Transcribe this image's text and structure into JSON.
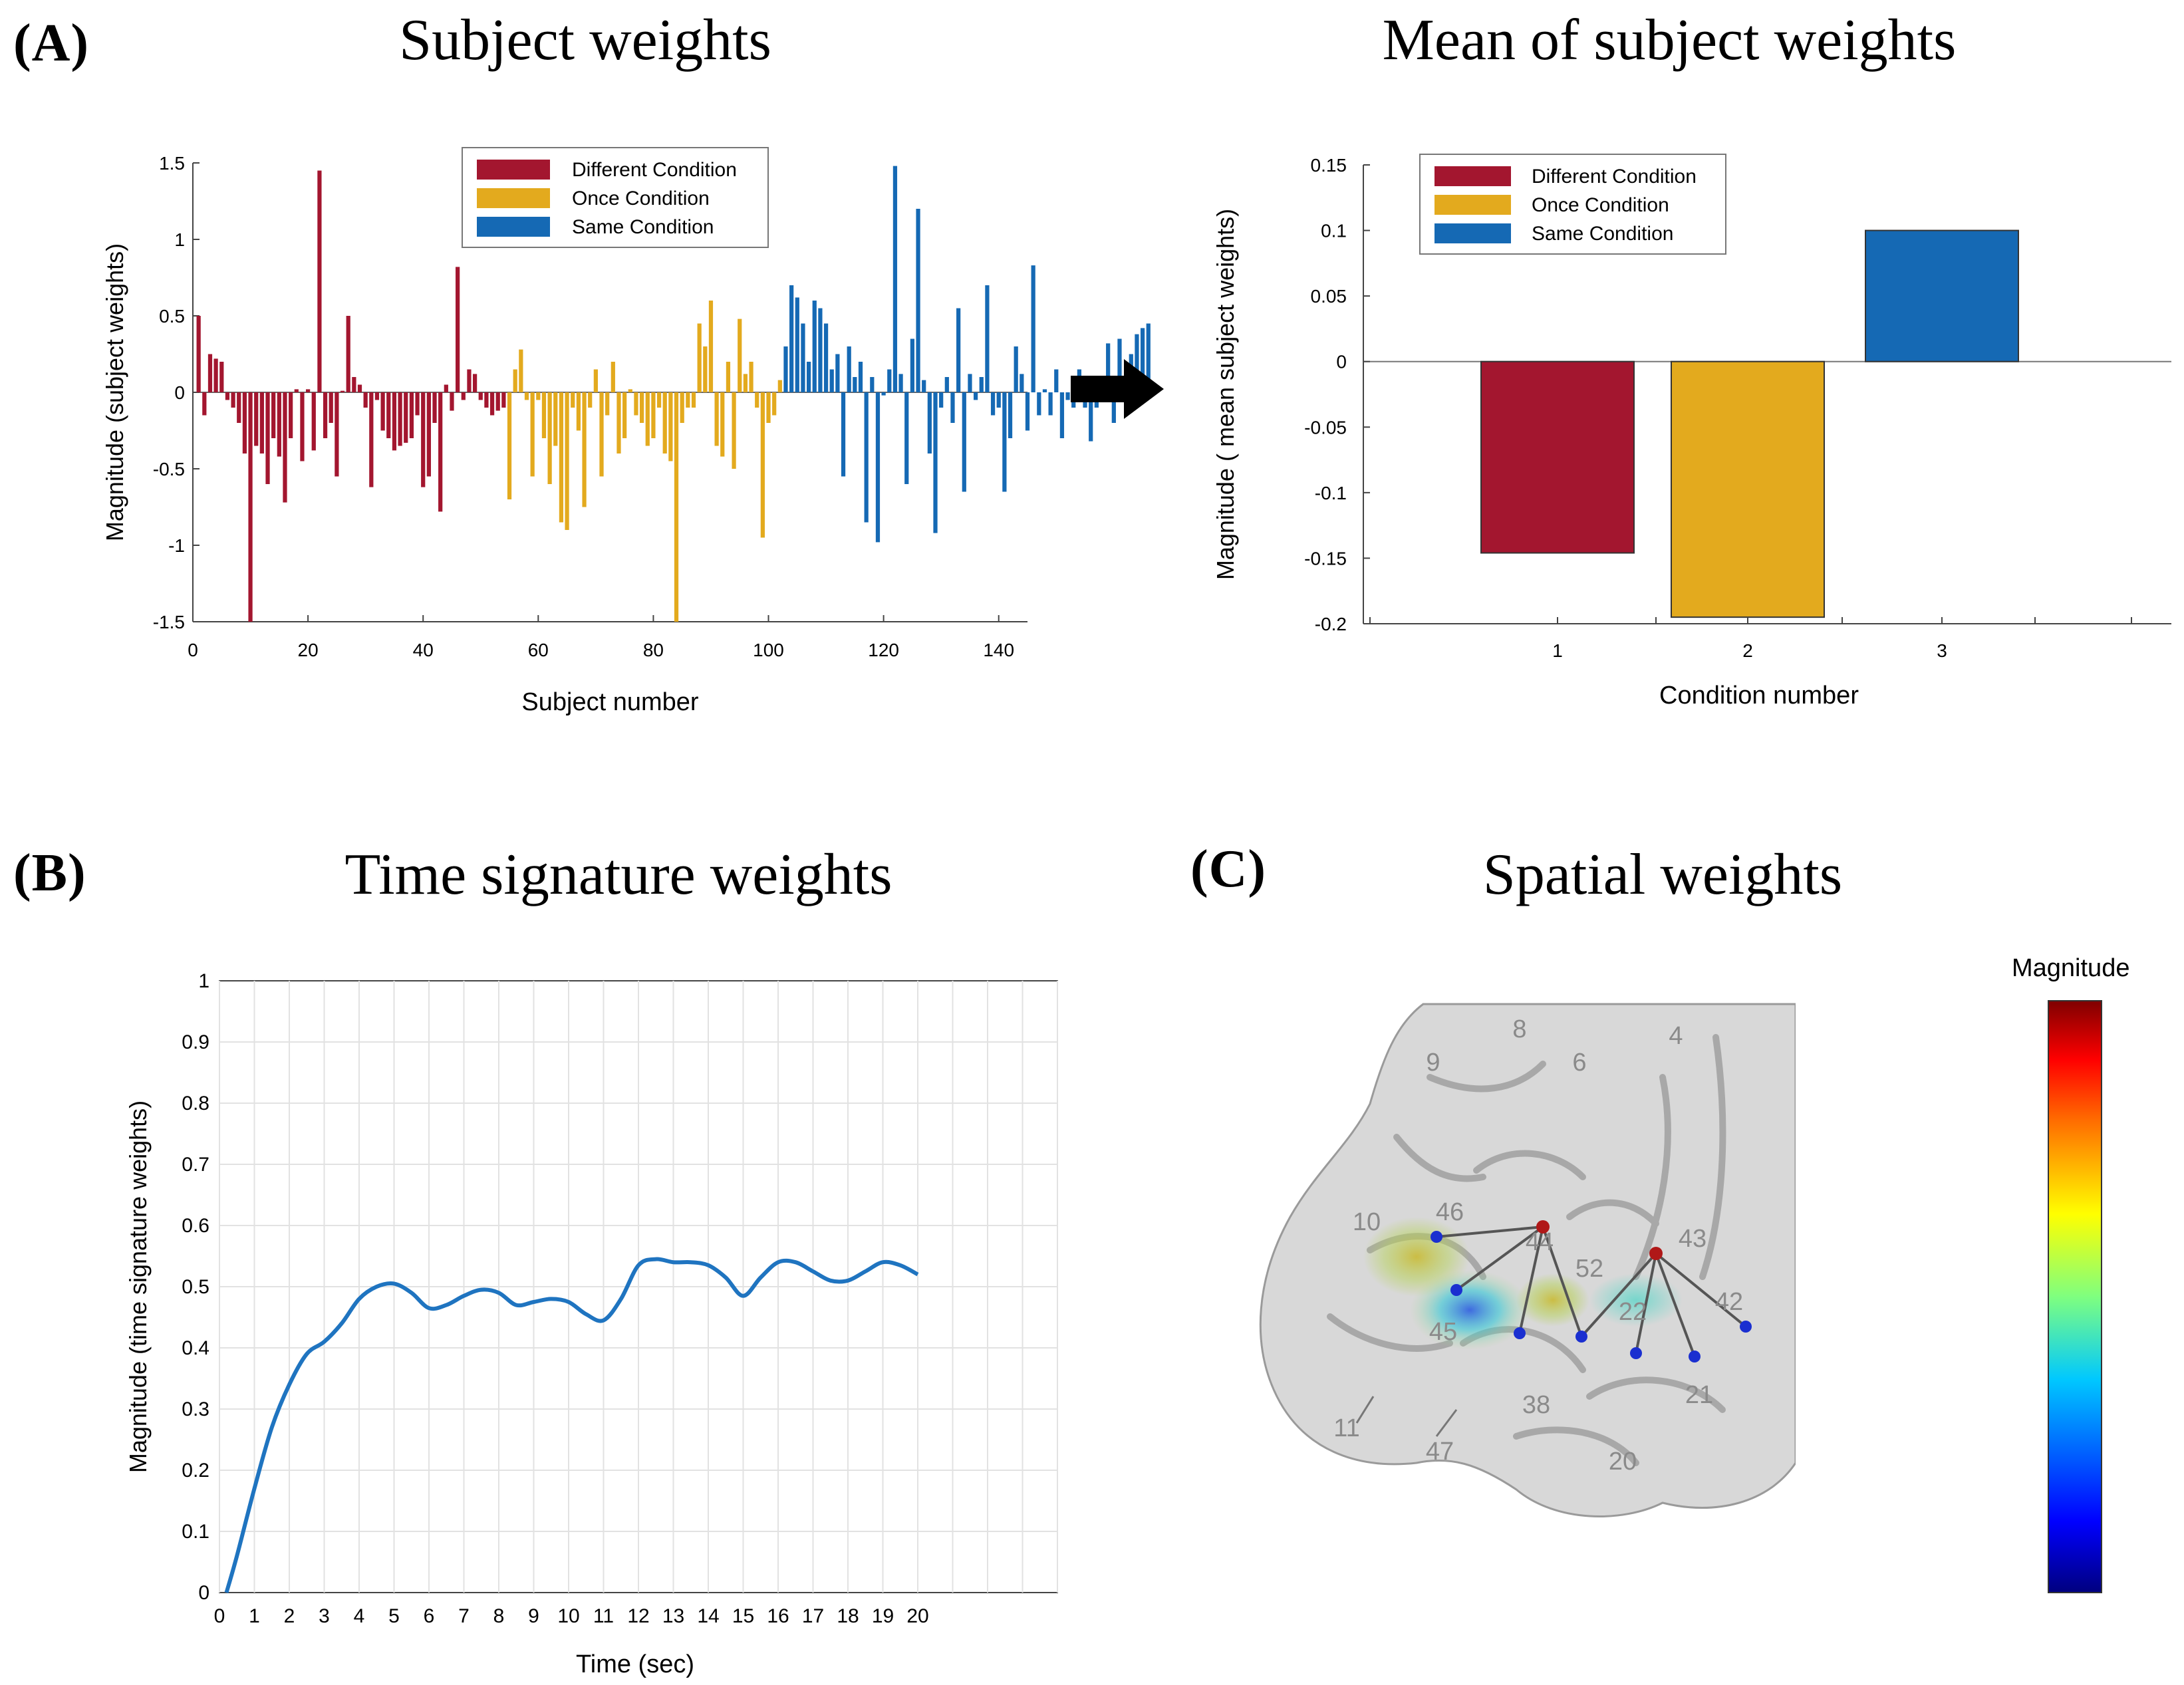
{
  "panels": {
    "a_label": "(A)",
    "a_left_title": "Subject weights",
    "a_right_title": "Mean of subject weights",
    "b_label": "(B)",
    "b_title": "Time signature weights",
    "c_label": "(C)",
    "c_title": "Spatial weights"
  },
  "colors": {
    "different": "#a3162f",
    "once": "#e3aa1e",
    "same": "#1569b4",
    "line": "#1f74c0"
  },
  "chart_data": [
    {
      "type": "bar",
      "title": "Subject weights",
      "xlabel": "Subject number",
      "ylabel": "Magnitude (subject weights)",
      "xlim": [
        0,
        145
      ],
      "ylim": [
        -1.5,
        1.5
      ],
      "xticks": [
        "0",
        "20",
        "40",
        "60",
        "80",
        "100",
        "120",
        "140"
      ],
      "yticks": [
        "-1.5",
        "-1",
        "-0.5",
        "0",
        "0.5",
        "1",
        "1.5"
      ],
      "legend": [
        "Different Condition",
        "Once Condition",
        "Same Condition"
      ],
      "legend_position": "top-center",
      "series": [
        {
          "name": "Different Condition",
          "color_key": "different",
          "start": 1,
          "values": [
            0.5,
            -0.15,
            0.25,
            0.22,
            0.2,
            -0.05,
            -0.1,
            -0.2,
            -0.4,
            -1.5,
            -0.35,
            -0.4,
            -0.6,
            -0.3,
            -0.42,
            -0.72,
            -0.3,
            0.02,
            -0.45,
            0.02,
            -0.38,
            1.45,
            -0.3,
            -0.2,
            -0.55,
            0.01,
            0.5,
            0.1,
            0.05,
            -0.1,
            -0.62,
            -0.05,
            -0.25,
            -0.3,
            -0.38,
            -0.35,
            -0.33,
            -0.3,
            -0.15,
            -0.62,
            -0.55,
            -0.2,
            -0.78,
            0.05,
            -0.12,
            0.82,
            -0.05,
            0.15,
            0.12,
            -0.05,
            -0.1,
            -0.15,
            -0.12,
            -0.1
          ]
        },
        {
          "name": "Once Condition",
          "color_key": "once",
          "start": 55,
          "values": [
            -0.7,
            0.15,
            0.28,
            -0.05,
            -0.55,
            -0.05,
            -0.3,
            -0.6,
            -0.35,
            -0.85,
            -0.9,
            -0.1,
            -0.25,
            -0.75,
            -0.1,
            0.15,
            -0.55,
            -0.15,
            0.2,
            -0.4,
            -0.3,
            0.02,
            -0.15,
            -0.2,
            -0.35,
            -0.3,
            -0.1,
            -0.4,
            -0.45,
            -1.5,
            -0.2,
            -0.1,
            -0.1,
            0.45,
            0.3,
            0.6,
            -0.35,
            -0.42,
            0.2,
            -0.5,
            0.48,
            0.12,
            0.2,
            -0.1,
            -0.95,
            -0.2,
            -0.15,
            0.08
          ]
        },
        {
          "name": "Same Condition",
          "color_key": "same",
          "start": 103,
          "values": [
            0.3,
            0.7,
            0.62,
            0.45,
            0.2,
            0.6,
            0.55,
            0.45,
            0.15,
            0.25,
            -0.55,
            0.3,
            0.1,
            0.2,
            -0.85,
            0.1,
            -0.98,
            -0.02,
            0.15,
            1.48,
            0.12,
            -0.6,
            0.35,
            1.2,
            0.08,
            -0.4,
            -0.92,
            -0.1,
            0.1,
            -0.2,
            0.55,
            -0.65,
            0.12,
            -0.05,
            0.1,
            0.7,
            -0.15,
            -0.1,
            -0.65,
            -0.3,
            0.3,
            0.12,
            -0.25,
            0.83,
            -0.15,
            0.02,
            -0.15,
            0.15,
            -0.3,
            -0.05,
            -0.1,
            0.15,
            -0.1,
            -0.32,
            -0.1,
            0.1,
            0.32,
            -0.2,
            0.35,
            0.02,
            0.25,
            0.38,
            0.42,
            0.45
          ]
        }
      ]
    },
    {
      "type": "bar",
      "title": "Mean of subject weights",
      "xlabel": "Condition number",
      "ylabel": "Magnitude ( mean subject weights)",
      "categories": [
        "1",
        "2",
        "3"
      ],
      "values": [
        -0.146,
        -0.195,
        0.1
      ],
      "ylim": [
        -0.2,
        0.15
      ],
      "yticks": [
        "-0.2",
        "-0.15",
        "-0.1",
        "-0.05",
        "0",
        "0.05",
        "0.1",
        "0.15"
      ],
      "legend": [
        "Different Condition",
        "Once Condition",
        "Same Condition"
      ],
      "legend_position": "top-left"
    },
    {
      "type": "line",
      "title": "Time signature weights",
      "xlabel": "Time (sec)",
      "ylabel": "Magnitude (time signature weights)",
      "xlim": [
        0,
        24
      ],
      "ylim": [
        0,
        1
      ],
      "grid": true,
      "xticks": [
        "0",
        "1",
        "2",
        "3",
        "4",
        "5",
        "6",
        "7",
        "8",
        "9",
        "10",
        "11",
        "12",
        "13",
        "14",
        "15",
        "16",
        "17",
        "18",
        "19",
        "20"
      ],
      "yticks": [
        "0",
        "0.1",
        "0.2",
        "0.3",
        "0.4",
        "0.5",
        "0.6",
        "0.7",
        "0.8",
        "0.9",
        "1"
      ],
      "x": [
        0.2,
        0.5,
        1,
        1.5,
        2,
        2.5,
        3,
        3.5,
        4,
        4.5,
        5,
        5.5,
        6,
        6.5,
        7,
        7.5,
        8,
        8.5,
        9,
        9.5,
        10,
        10.5,
        11,
        11.5,
        12,
        12.5,
        13,
        13.5,
        14,
        14.5,
        15,
        15.5,
        16,
        16.5,
        17,
        17.5,
        18,
        18.5,
        19,
        19.5,
        20
      ],
      "y": [
        0.0,
        0.06,
        0.17,
        0.27,
        0.34,
        0.39,
        0.41,
        0.44,
        0.48,
        0.5,
        0.505,
        0.49,
        0.465,
        0.47,
        0.485,
        0.495,
        0.49,
        0.47,
        0.475,
        0.48,
        0.475,
        0.455,
        0.445,
        0.48,
        0.535,
        0.545,
        0.54,
        0.54,
        0.535,
        0.515,
        0.485,
        0.515,
        0.54,
        0.54,
        0.525,
        0.51,
        0.51,
        0.525,
        0.54,
        0.535,
        0.52
      ]
    }
  ],
  "spatial": {
    "colorbar_title": "Magnitude",
    "brodmann_labels": [
      "9",
      "8",
      "6",
      "4",
      "10",
      "46",
      "44",
      "43",
      "52",
      "42",
      "45",
      "22",
      "11",
      "47",
      "38",
      "21",
      "20"
    ]
  }
}
